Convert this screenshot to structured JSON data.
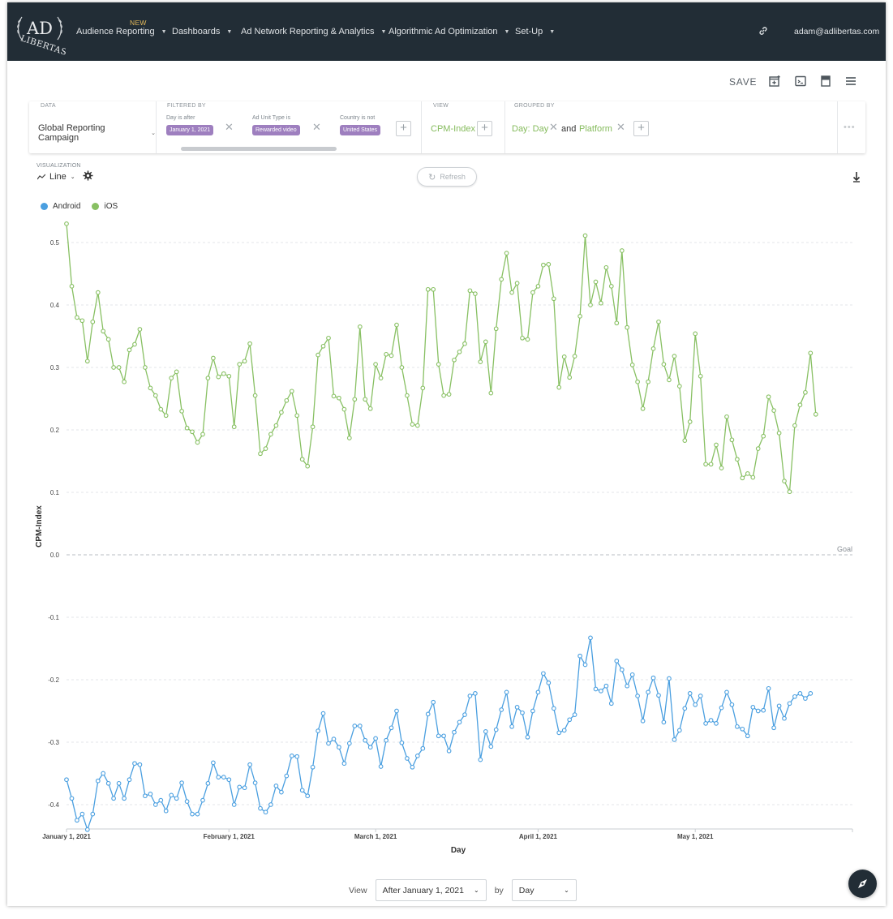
{
  "nav": {
    "logo_alt": "AdLibertas",
    "new_badge": "NEW",
    "items": [
      {
        "label": "Audience Reporting"
      },
      {
        "label": "Dashboards"
      },
      {
        "label": "Ad Network Reporting & Analytics"
      },
      {
        "label": "Algorithmic Ad Optimization"
      },
      {
        "label": "Set-Up"
      }
    ],
    "user": "adam@adlibertas.com",
    "link_icon": "link-icon"
  },
  "toolbar": {
    "save_label": "SAVE",
    "icons": [
      "add-to-dashboard-icon",
      "embed-icon",
      "notebook-icon",
      "menu-icon"
    ]
  },
  "filters": {
    "data_label": "DATA",
    "data_source": "Global Reporting Campaign",
    "filtered_by_label": "FILTERED BY",
    "items": [
      {
        "label": "Day is after",
        "value": "January 1, 2021"
      },
      {
        "label": "Ad Unit Type is",
        "value": "Rewarded video"
      },
      {
        "label": "Country is not",
        "value": "United States"
      }
    ],
    "view_label": "VIEW",
    "view_value": "CPM-Index",
    "grouped_by_label": "GROUPED BY",
    "group_1": "Day: Day",
    "group_and": "and",
    "group_2": "Platform",
    "more": "•••"
  },
  "visualization": {
    "label": "VISUALIZATION",
    "type": "Line",
    "refresh_label": "Refresh"
  },
  "legend": [
    {
      "name": "Android",
      "color": "#4a9fe0"
    },
    {
      "name": "iOS",
      "color": "#88c063"
    }
  ],
  "chart_data": {
    "type": "line",
    "xlabel": "Day",
    "ylabel": "CPM-Index",
    "ylim": [
      -0.44,
      0.54
    ],
    "yticks": [
      0.5,
      0.4,
      0.3,
      0.2,
      0.1,
      0.0,
      -0.1,
      -0.2,
      -0.3,
      -0.4
    ],
    "x_start": "2021-01-01",
    "x_end": "2021-05-31",
    "xticks": [
      {
        "label": "January 1, 2021",
        "date": "2021-01-01"
      },
      {
        "label": "February 1, 2021",
        "date": "2021-02-01"
      },
      {
        "label": "March 1, 2021",
        "date": "2021-03-01"
      },
      {
        "label": "April 1, 2021",
        "date": "2021-04-01"
      },
      {
        "label": "May 1, 2021",
        "date": "2021-05-01"
      }
    ],
    "goal": {
      "label": "Goal",
      "value": 0.0
    },
    "grid": true,
    "series": [
      {
        "name": "iOS",
        "color": "#88c063",
        "values": [
          0.53,
          0.43,
          0.38,
          0.375,
          0.31,
          0.373,
          0.42,
          0.358,
          0.345,
          0.3,
          0.3,
          0.277,
          0.328,
          0.337,
          0.361,
          0.3,
          0.267,
          0.255,
          0.233,
          0.223,
          0.283,
          0.293,
          0.23,
          0.203,
          0.197,
          0.18,
          0.193,
          0.283,
          0.315,
          0.285,
          0.29,
          0.286,
          0.205,
          0.305,
          0.31,
          0.338,
          0.255,
          0.162,
          0.17,
          0.193,
          0.207,
          0.228,
          0.247,
          0.262,
          0.223,
          0.153,
          0.142,
          0.205,
          0.32,
          0.334,
          0.347,
          0.254,
          0.251,
          0.233,
          0.187,
          0.249,
          0.365,
          0.249,
          0.234,
          0.305,
          0.283,
          0.321,
          0.319,
          0.368,
          0.3,
          0.255,
          0.209,
          0.207,
          0.267,
          0.425,
          0.425,
          0.305,
          0.255,
          0.257,
          0.312,
          0.325,
          0.338,
          0.423,
          0.418,
          0.309,
          0.341,
          0.259,
          0.362,
          0.441,
          0.483,
          0.42,
          0.435,
          0.347,
          0.345,
          0.42,
          0.43,
          0.464,
          0.465,
          0.41,
          0.268,
          0.317,
          0.284,
          0.318,
          0.382,
          0.511,
          0.4,
          0.437,
          0.403,
          0.46,
          0.43,
          0.371,
          0.487,
          0.364,
          0.304,
          0.277,
          0.234,
          0.277,
          0.33,
          0.373,
          0.305,
          0.28,
          0.318,
          0.27,
          0.183,
          0.213,
          0.354,
          0.286,
          0.145,
          0.145,
          0.176,
          0.139,
          0.221,
          0.184,
          0.153,
          0.123,
          0.13,
          0.124,
          0.17,
          0.19,
          0.253,
          0.231,
          0.195,
          0.118,
          0.101,
          0.207,
          0.24,
          0.26,
          0.323,
          0.225
        ]
      },
      {
        "name": "Android",
        "color": "#4a9fe0",
        "values": [
          -0.36,
          -0.39,
          -0.425,
          -0.415,
          -0.44,
          -0.415,
          -0.362,
          -0.35,
          -0.366,
          -0.39,
          -0.366,
          -0.39,
          -0.36,
          -0.334,
          -0.336,
          -0.386,
          -0.383,
          -0.4,
          -0.393,
          -0.41,
          -0.385,
          -0.39,
          -0.365,
          -0.395,
          -0.415,
          -0.415,
          -0.393,
          -0.366,
          -0.333,
          -0.356,
          -0.356,
          -0.36,
          -0.4,
          -0.372,
          -0.373,
          -0.336,
          -0.365,
          -0.406,
          -0.412,
          -0.4,
          -0.37,
          -0.38,
          -0.354,
          -0.322,
          -0.323,
          -0.377,
          -0.386,
          -0.34,
          -0.282,
          -0.254,
          -0.302,
          -0.295,
          -0.308,
          -0.334,
          -0.302,
          -0.274,
          -0.274,
          -0.297,
          -0.308,
          -0.294,
          -0.339,
          -0.297,
          -0.277,
          -0.25,
          -0.301,
          -0.326,
          -0.34,
          -0.322,
          -0.31,
          -0.255,
          -0.236,
          -0.29,
          -0.29,
          -0.314,
          -0.284,
          -0.268,
          -0.256,
          -0.226,
          -0.222,
          -0.328,
          -0.283,
          -0.307,
          -0.28,
          -0.248,
          -0.22,
          -0.275,
          -0.244,
          -0.253,
          -0.292,
          -0.25,
          -0.22,
          -0.19,
          -0.205,
          -0.246,
          -0.285,
          -0.281,
          -0.264,
          -0.256,
          -0.162,
          -0.176,
          -0.133,
          -0.215,
          -0.218,
          -0.21,
          -0.238,
          -0.17,
          -0.184,
          -0.21,
          -0.192,
          -0.226,
          -0.266,
          -0.22,
          -0.197,
          -0.225,
          -0.268,
          -0.198,
          -0.296,
          -0.281,
          -0.246,
          -0.222,
          -0.24,
          -0.226,
          -0.27,
          -0.265,
          -0.27,
          -0.245,
          -0.22,
          -0.24,
          -0.275,
          -0.279,
          -0.29,
          -0.244,
          -0.25,
          -0.249,
          -0.214,
          -0.277,
          -0.242,
          -0.262,
          -0.238,
          -0.227,
          -0.222,
          -0.23,
          -0.222
        ]
      }
    ]
  },
  "bottom": {
    "view_label": "View",
    "range_value": "After January 1, 2021",
    "by_label": "by",
    "granularity_value": "Day"
  }
}
